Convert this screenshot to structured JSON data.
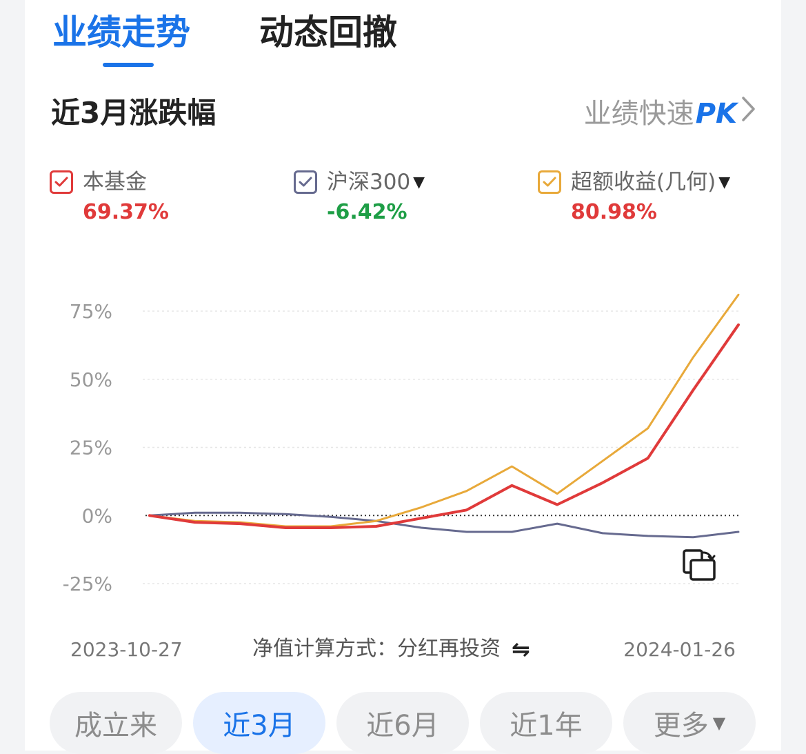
{
  "tabs": [
    {
      "label": "业绩走势",
      "active": true
    },
    {
      "label": "动态回撤",
      "active": false
    }
  ],
  "section": {
    "title": "近3月涨跌幅",
    "pk_prefix": "业绩快速",
    "pk_suffix": "PK",
    "pk_chevron": "›"
  },
  "legend": [
    {
      "name": "本基金",
      "value": "69.37%",
      "color": "#e03a3a",
      "value_color": "#e03a3a",
      "dropdown": false
    },
    {
      "name": "沪深300",
      "value": "-6.42%",
      "color": "#666a8f",
      "value_color": "#1e9e46",
      "dropdown": true
    },
    {
      "name": "超额收益(几何)",
      "value": "80.98%",
      "color": "#e8a93a",
      "value_color": "#e03a3a",
      "dropdown": true
    }
  ],
  "chart_data": {
    "type": "line",
    "y_ticks": [
      75,
      50,
      25,
      0,
      -25
    ],
    "y_tick_labels": [
      "75%",
      "50%",
      "25%",
      "0%",
      "-25%"
    ],
    "ylim": [
      -25,
      75
    ],
    "x_start_label": "2023-10-27",
    "x_end_label": "2024-01-26",
    "grid": true,
    "zero_line": "dotted",
    "series": [
      {
        "name": "本基金",
        "color": "#e03a3a",
        "values": [
          0,
          -2.5,
          -3,
          -4.5,
          -4.5,
          -4,
          -1,
          2,
          11,
          4,
          12,
          21,
          46,
          70
        ]
      },
      {
        "name": "沪深300",
        "color": "#666a8f",
        "values": [
          0,
          1,
          1,
          0.5,
          -0.5,
          -2,
          -4.5,
          -6,
          -6,
          -3,
          -6.5,
          -7.5,
          -8,
          -6
        ]
      },
      {
        "name": "超额收益(几何)",
        "color": "#e8a93a",
        "values": [
          0,
          -2,
          -2.5,
          -4,
          -4,
          -2,
          3,
          9,
          18,
          8,
          20,
          32,
          58,
          81
        ]
      }
    ]
  },
  "footer": {
    "calc_mode": "净值计算方式：分红再投资",
    "swap_icon": "⇋"
  },
  "ranges": [
    {
      "label": "成立来",
      "active": false,
      "dropdown": false
    },
    {
      "label": "近3月",
      "active": true,
      "dropdown": false
    },
    {
      "label": "近6月",
      "active": false,
      "dropdown": false
    },
    {
      "label": "近1年",
      "active": false,
      "dropdown": false
    },
    {
      "label": "更多",
      "active": false,
      "dropdown": true
    }
  ]
}
